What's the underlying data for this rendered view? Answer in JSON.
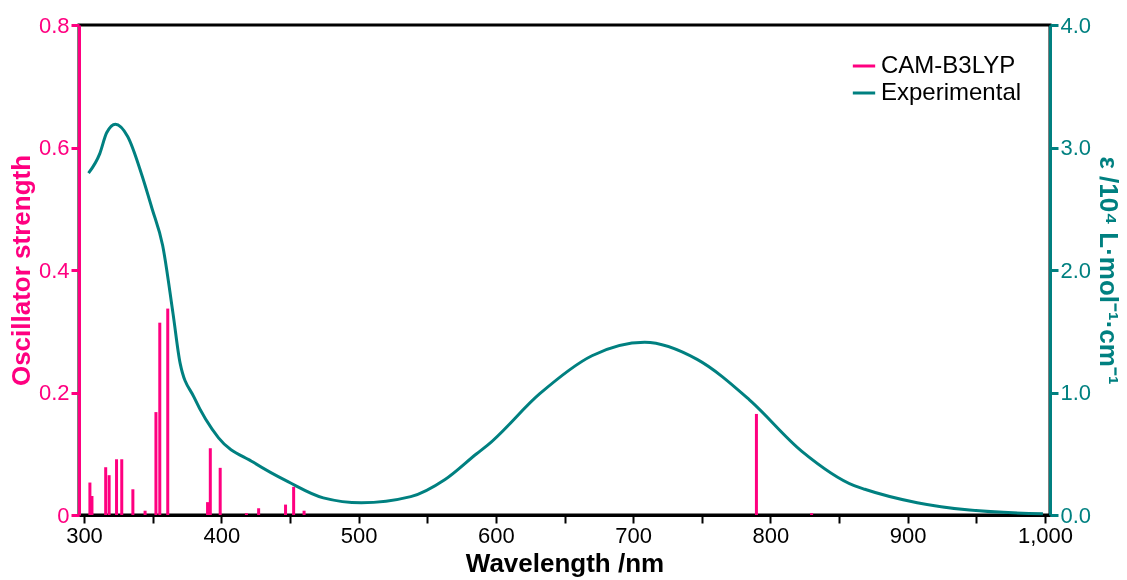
{
  "chart_data": {
    "type": "bar",
    "xlabel": "Wavelength /nm",
    "ylabel": "Oscillator strength",
    "y2label": "ε /10⁴ L·mol⁻¹·cm⁻¹",
    "xlim": [
      300,
      1000
    ],
    "xticks": [
      300,
      {
        "value": 350,
        "label": null
      },
      400,
      {
        "value": 450,
        "label": null
      },
      500,
      {
        "value": 550,
        "label": null
      },
      600,
      {
        "value": 650,
        "label": null
      },
      700,
      {
        "value": 750,
        "label": null
      },
      800,
      {
        "value": 850,
        "label": null
      },
      900,
      {
        "value": 950,
        "label": null
      },
      {
        "value": 1000,
        "label": "1,000"
      }
    ],
    "ylim": [
      0,
      0.8
    ],
    "yticks": [
      0,
      0.2,
      0.4,
      0.6,
      0.8
    ],
    "y2lim": [
      0,
      4
    ],
    "y2ticks": [
      {
        "value": 0,
        "label": "0.0"
      },
      {
        "value": 1,
        "label": "1.0"
      },
      {
        "value": 2,
        "label": "2.0"
      },
      {
        "value": 3,
        "label": "3.0"
      },
      {
        "value": 4,
        "label": "4.0"
      }
    ],
    "legend": "top right",
    "grid": false,
    "series": [
      {
        "name": "CAM-B3LYP",
        "color": "#ff0080",
        "x": [
          304.3,
          305.8,
          315.8,
          318.3,
          323.7,
          327.5,
          335.6,
          344.5,
          352.4,
          355.2,
          361,
          390,
          392,
          399.2,
          418.3,
          427.2,
          446.8,
          452.7,
          460.3,
          789.8,
          830
        ],
        "values": [
          0.053,
          0.031,
          0.078,
          0.065,
          0.091,
          0.091,
          0.042,
          0.007,
          0.168,
          0.314,
          0.337,
          0.021,
          0.109,
          0.077,
          0.003,
          0.011,
          0.017,
          0.046,
          0.007,
          0.165,
          0.003
        ]
      },
      {
        "name": "Experimental",
        "type": "line",
        "axis": "y2",
        "color": "#008080",
        "x": [
          303.3,
          311.5,
          316.5,
          322.9,
          331.8,
          342,
          349.6,
          357.3,
          364.9,
          370,
          380.2,
          398,
          423.4,
          448.9,
          474.3,
          502,
          538,
          563,
          586,
          594,
          632,
          670,
          708.4,
          746.6,
          784.7,
          822.9,
          861,
          868.7,
          906.9,
          945,
          998.5
        ],
        "values": [
          2.79,
          2.95,
          3.12,
          3.19,
          3.09,
          2.78,
          2.5,
          2.2,
          1.64,
          1.24,
          0.96,
          0.63,
          0.43,
          0.27,
          0.14,
          0.1,
          0.15,
          0.29,
          0.5,
          0.57,
          0.99,
          1.3,
          1.41,
          1.27,
          0.94,
          0.52,
          0.24,
          0.21,
          0.1,
          0.04,
          0.01
        ]
      }
    ]
  }
}
